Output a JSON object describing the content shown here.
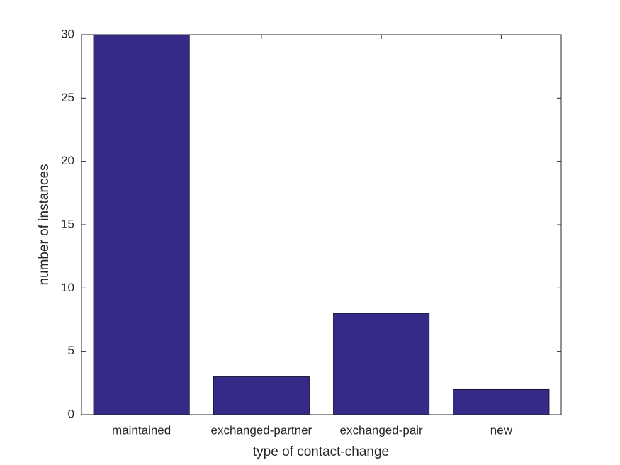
{
  "chart_data": {
    "type": "bar",
    "x_label": "type of contact-change",
    "y_label": "number of instances",
    "categories": [
      "maintained",
      "exchanged-partner",
      "exchanged-pair",
      "new"
    ],
    "values": [
      30,
      3,
      8,
      2
    ],
    "color": "#352a87",
    "ylim": [
      0,
      30
    ],
    "yticks": [
      0,
      5,
      10,
      15,
      20,
      25,
      30
    ],
    "grid": false
  }
}
